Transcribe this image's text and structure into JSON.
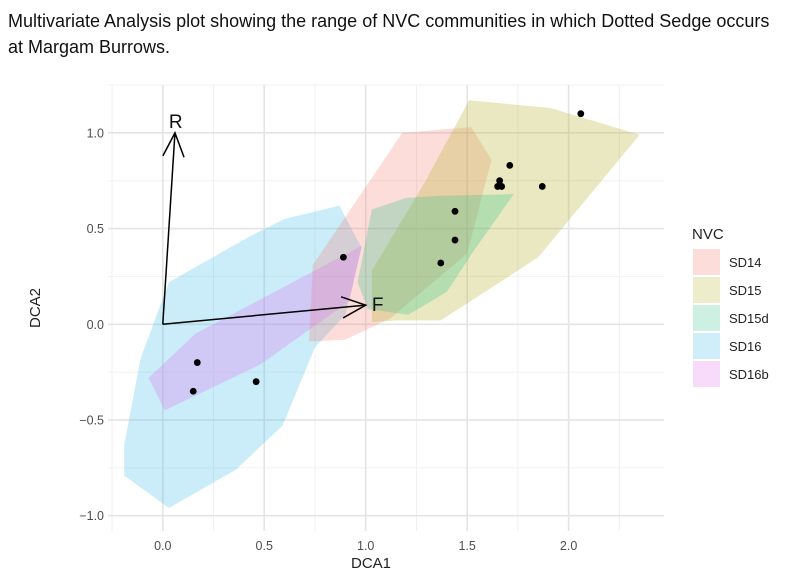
{
  "title": "Multivariate Analysis plot showing the range of NVC communities in which Dotted Sedge occurs at Margam Burrows.",
  "chart_data": {
    "type": "scatter",
    "xlabel": "DCA1",
    "ylabel": "DCA2",
    "xlim": [
      -0.27,
      2.47
    ],
    "ylim": [
      -1.08,
      1.25
    ],
    "x_ticks": [
      0.0,
      0.5,
      1.0,
      1.5,
      2.0
    ],
    "x_tick_labels": [
      "0.0",
      "0.5",
      "1.0",
      "1.5",
      "2.0"
    ],
    "y_ticks": [
      -1.0,
      -0.5,
      0.0,
      0.5,
      1.0
    ],
    "y_tick_labels": [
      "−1.0",
      "−0.5",
      "0.0",
      "0.5",
      "1.0"
    ],
    "grid": true,
    "legend": {
      "title": "NVC",
      "placement": "right",
      "entries": [
        {
          "label": "SD14",
          "color": "#f8766d"
        },
        {
          "label": "SD15",
          "color": "#b7b230"
        },
        {
          "label": "SD15d",
          "color": "#3ac48c"
        },
        {
          "label": "SD16",
          "color": "#3fbde9"
        },
        {
          "label": "SD16b",
          "color": "#e46bf1"
        }
      ]
    },
    "hulls": [
      {
        "group": "SD16",
        "color": "#3fbde9",
        "opacity": 0.28,
        "points": [
          [
            -0.19,
            -0.63
          ],
          [
            -0.11,
            -0.18
          ],
          [
            0.03,
            0.22
          ],
          [
            0.43,
            0.46
          ],
          [
            0.6,
            0.55
          ],
          [
            0.87,
            0.62
          ],
          [
            0.98,
            0.4
          ],
          [
            0.9,
            0.05
          ],
          [
            0.75,
            -0.12
          ],
          [
            0.59,
            -0.53
          ],
          [
            0.36,
            -0.76
          ],
          [
            0.03,
            -0.96
          ],
          [
            -0.19,
            -0.79
          ]
        ]
      },
      {
        "group": "SD14",
        "color": "#f8766d",
        "opacity": 0.25,
        "points": [
          [
            0.72,
            -0.09
          ],
          [
            0.74,
            0.31
          ],
          [
            1.18,
            1.0
          ],
          [
            1.52,
            1.03
          ],
          [
            1.62,
            0.86
          ],
          [
            1.5,
            0.37
          ],
          [
            1.12,
            0.03
          ],
          [
            0.9,
            -0.08
          ]
        ]
      },
      {
        "group": "SD15",
        "color": "#b7b230",
        "opacity": 0.3,
        "points": [
          [
            1.03,
            0.01
          ],
          [
            1.03,
            0.28
          ],
          [
            1.29,
            0.74
          ],
          [
            1.51,
            1.17
          ],
          [
            1.91,
            1.13
          ],
          [
            2.35,
            0.99
          ],
          [
            1.85,
            0.35
          ],
          [
            1.37,
            0.02
          ],
          [
            1.15,
            0.02
          ]
        ]
      },
      {
        "group": "SD15d",
        "color": "#3ac48c",
        "opacity": 0.3,
        "points": [
          [
            0.96,
            0.22
          ],
          [
            1.03,
            0.6
          ],
          [
            1.2,
            0.66
          ],
          [
            1.35,
            0.67
          ],
          [
            1.73,
            0.68
          ],
          [
            1.53,
            0.38
          ],
          [
            1.4,
            0.17
          ],
          [
            1.21,
            0.05
          ],
          [
            1.01,
            0.08
          ]
        ]
      },
      {
        "group": "SD16b",
        "color": "#e46bf1",
        "opacity": 0.28,
        "points": [
          [
            -0.07,
            -0.28
          ],
          [
            0.01,
            -0.45
          ],
          [
            0.48,
            -0.21
          ],
          [
            0.92,
            0.12
          ],
          [
            0.98,
            0.41
          ],
          [
            0.89,
            0.36
          ],
          [
            0.16,
            -0.05
          ]
        ]
      }
    ],
    "points": [
      {
        "x": 2.06,
        "y": 1.1
      },
      {
        "x": 1.71,
        "y": 0.83
      },
      {
        "x": 1.66,
        "y": 0.75
      },
      {
        "x": 1.65,
        "y": 0.72
      },
      {
        "x": 1.67,
        "y": 0.72
      },
      {
        "x": 1.87,
        "y": 0.72
      },
      {
        "x": 1.44,
        "y": 0.59
      },
      {
        "x": 1.44,
        "y": 0.44
      },
      {
        "x": 1.37,
        "y": 0.32
      },
      {
        "x": 0.89,
        "y": 0.35
      },
      {
        "x": 0.17,
        "y": -0.2
      },
      {
        "x": 0.15,
        "y": -0.35
      },
      {
        "x": 0.46,
        "y": -0.3
      }
    ],
    "vectors": [
      {
        "label": "R",
        "x": 0.06,
        "y": 1.0
      },
      {
        "label": "F",
        "x": 1.0,
        "y": 0.1
      }
    ]
  }
}
